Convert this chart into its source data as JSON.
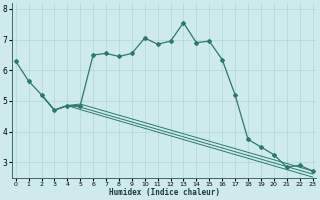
{
  "xlabel": "Humidex (Indice chaleur)",
  "x_ticks": [
    0,
    1,
    2,
    3,
    4,
    5,
    6,
    7,
    8,
    9,
    10,
    11,
    12,
    13,
    14,
    15,
    16,
    17,
    18,
    19,
    20,
    21,
    22,
    23
  ],
  "ylim": [
    2.5,
    8.2
  ],
  "xlim": [
    -0.3,
    23.3
  ],
  "yticks": [
    3,
    4,
    5,
    6,
    7,
    8
  ],
  "bg_color": "#ceeaea",
  "grid_color": "#b0d8d8",
  "line_color": "#2a7a6a",
  "main_line": {
    "x": [
      0,
      1,
      2,
      3,
      4,
      5,
      6,
      7,
      8,
      9,
      10,
      11,
      12,
      13,
      14,
      15,
      16,
      17,
      18,
      19,
      20,
      21,
      22,
      23
    ],
    "y": [
      6.3,
      5.65,
      5.2,
      4.7,
      4.85,
      4.85,
      6.5,
      6.55,
      6.45,
      6.55,
      7.05,
      6.85,
      6.95,
      7.55,
      6.9,
      6.95,
      6.35,
      5.2,
      3.75,
      3.5,
      3.25,
      2.85,
      2.9,
      2.72
    ]
  },
  "line2": {
    "x": [
      2,
      3,
      4,
      5,
      23
    ],
    "y": [
      5.2,
      4.7,
      4.85,
      4.9,
      2.72
    ]
  },
  "line3": {
    "x": [
      2,
      3,
      4,
      5,
      23
    ],
    "y": [
      5.2,
      4.7,
      4.85,
      4.8,
      2.62
    ]
  },
  "line4": {
    "x": [
      2,
      3,
      4,
      5,
      23
    ],
    "y": [
      5.2,
      4.7,
      4.85,
      4.72,
      2.52
    ]
  }
}
